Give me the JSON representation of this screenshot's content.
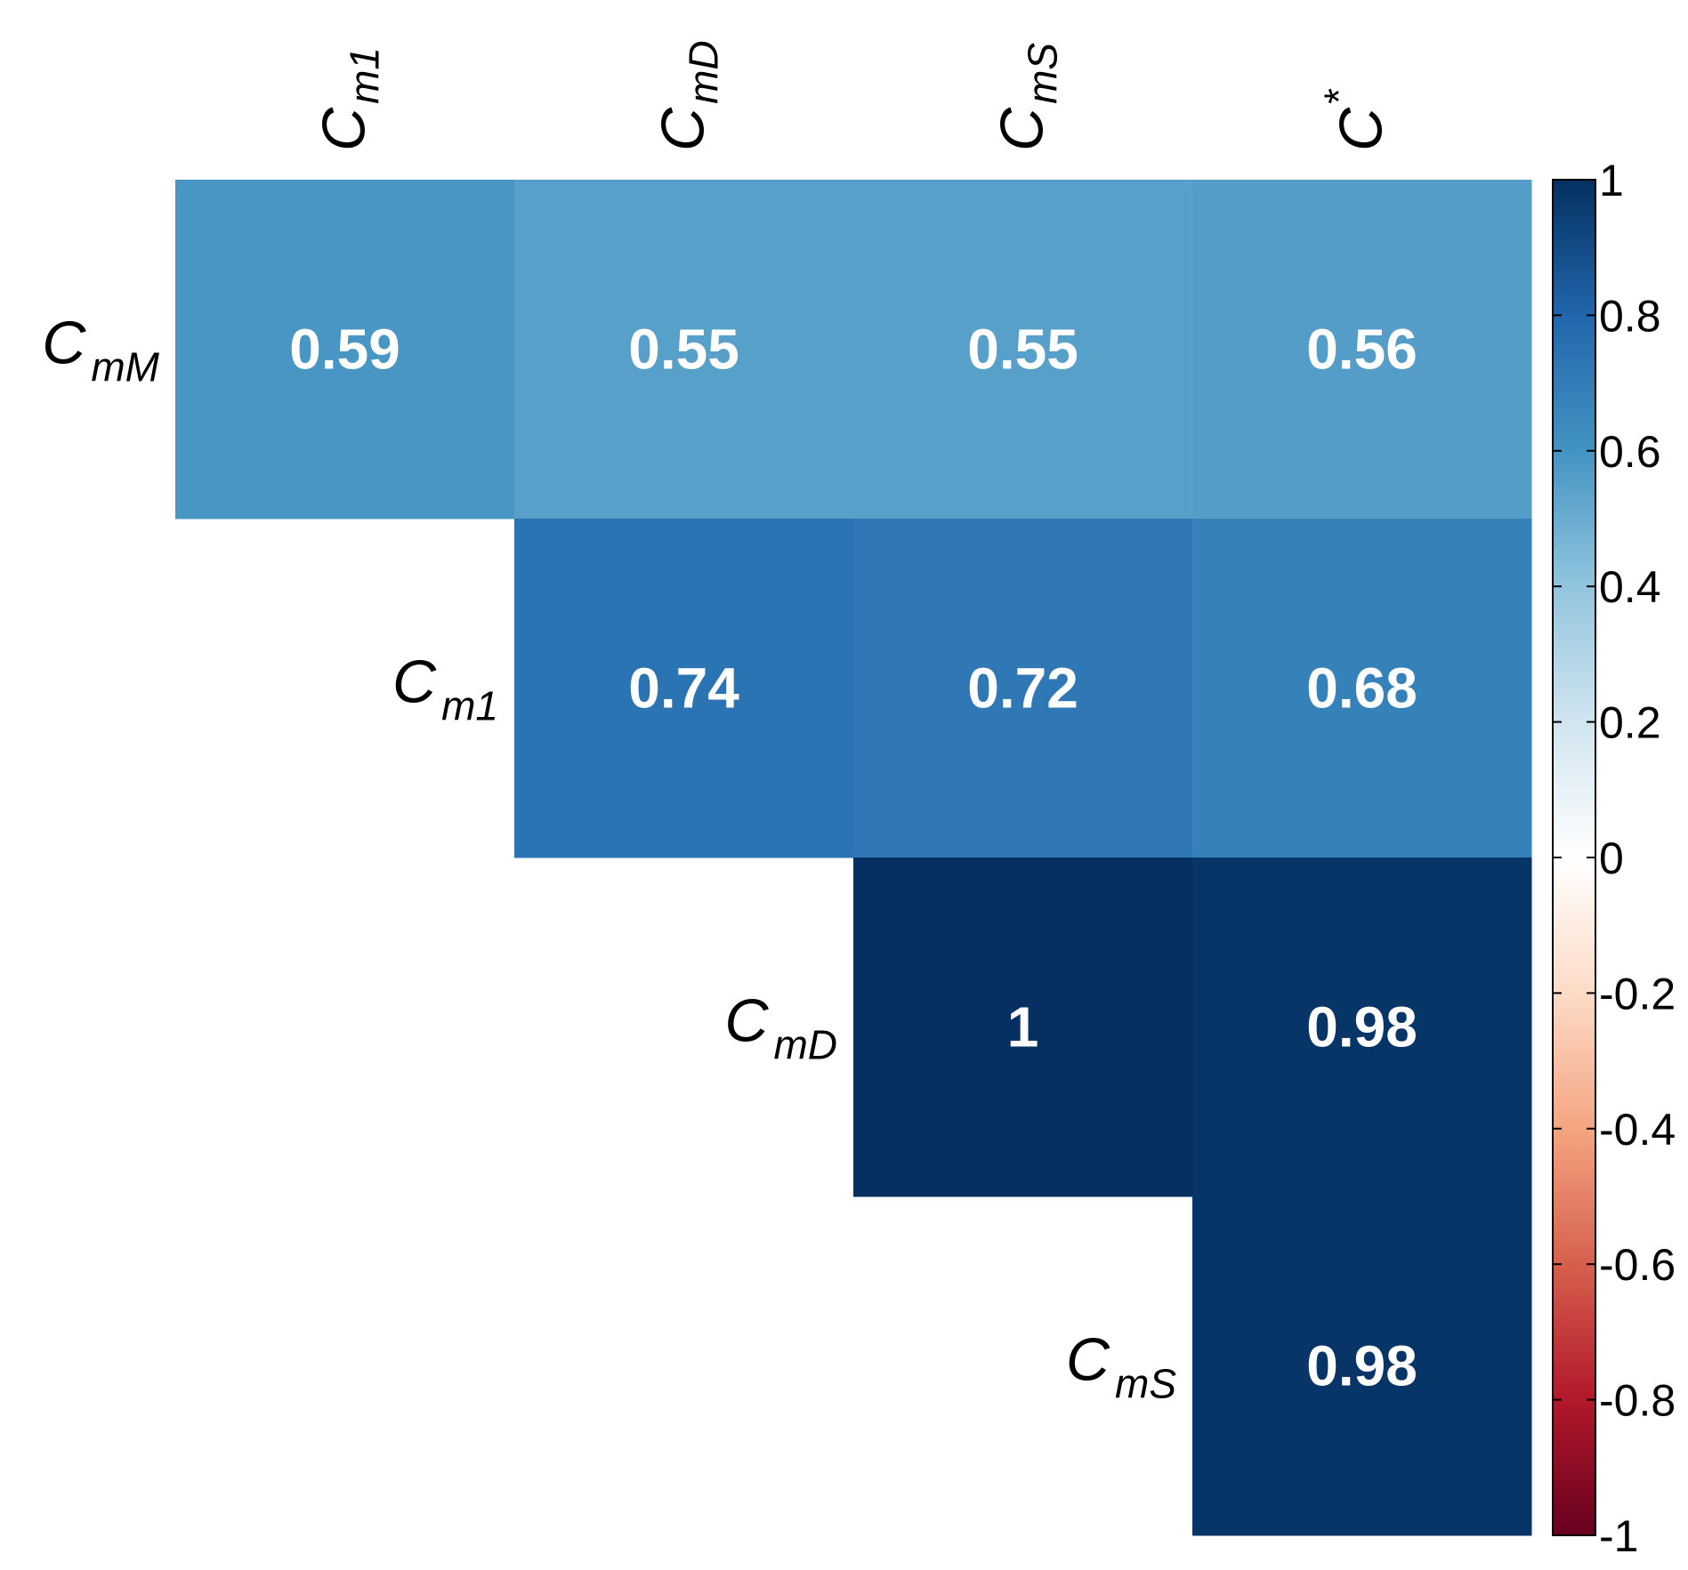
{
  "chart_data": {
    "type": "heatmap",
    "title": "",
    "layout": "upper-triangular correlation matrix",
    "rows": [
      {
        "base": "C",
        "sub": "mM"
      },
      {
        "base": "C",
        "sub": "m1"
      },
      {
        "base": "C",
        "sub": "mD"
      },
      {
        "base": "C",
        "sub": "mS"
      }
    ],
    "columns": [
      {
        "base": "C",
        "sub": "m1"
      },
      {
        "base": "C",
        "sub": "mD"
      },
      {
        "base": "C",
        "sub": "mS"
      },
      {
        "base": "C",
        "sup": "*"
      }
    ],
    "cells": [
      {
        "row": 0,
        "col": 0,
        "value": 0.59,
        "label": "0.59"
      },
      {
        "row": 0,
        "col": 1,
        "value": 0.55,
        "label": "0.55"
      },
      {
        "row": 0,
        "col": 2,
        "value": 0.55,
        "label": "0.55"
      },
      {
        "row": 0,
        "col": 3,
        "value": 0.56,
        "label": "0.56"
      },
      {
        "row": 1,
        "col": 1,
        "value": 0.74,
        "label": "0.74"
      },
      {
        "row": 1,
        "col": 2,
        "value": 0.72,
        "label": "0.72"
      },
      {
        "row": 1,
        "col": 3,
        "value": 0.68,
        "label": "0.68"
      },
      {
        "row": 2,
        "col": 2,
        "value": 1,
        "label": "1"
      },
      {
        "row": 2,
        "col": 3,
        "value": 0.98,
        "label": "0.98"
      },
      {
        "row": 3,
        "col": 3,
        "value": 0.98,
        "label": "0.98"
      }
    ],
    "colorbar": {
      "range": [
        -1,
        1
      ],
      "ticks": [
        1,
        0.8,
        0.6,
        0.4,
        0.2,
        0,
        -0.2,
        -0.4,
        -0.6,
        -0.8,
        -1
      ],
      "tick_labels": [
        "1",
        "0.8",
        "0.6",
        "0.4",
        "0.2",
        "0",
        "-0.2",
        "-0.4",
        "-0.6",
        "-0.8",
        "-1"
      ],
      "palette": "RdBu",
      "stops": [
        "#67001F",
        "#B2182B",
        "#D6604D",
        "#F4A582",
        "#FDDBC7",
        "#FFFFFF",
        "#D1E5F0",
        "#92C5DE",
        "#4393C3",
        "#2166AC",
        "#053061"
      ]
    }
  }
}
